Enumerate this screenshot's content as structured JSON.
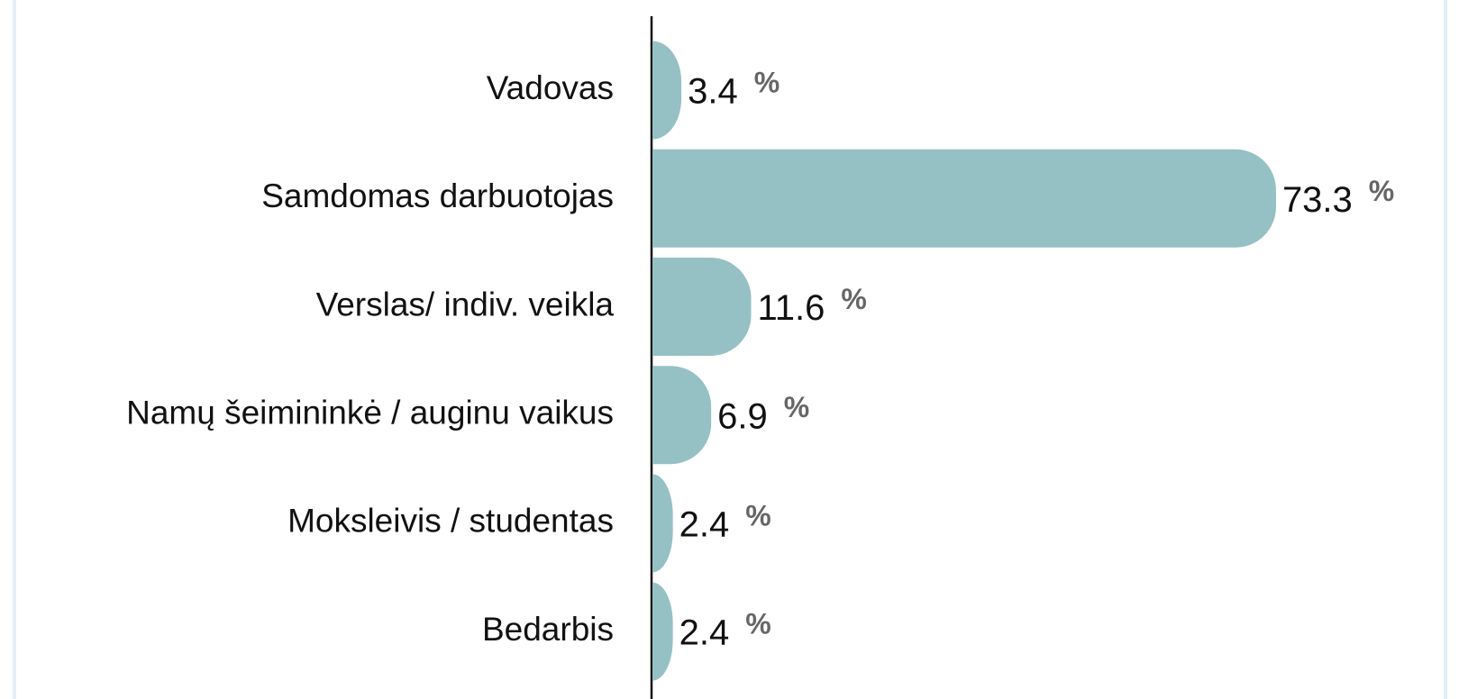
{
  "chart_data": {
    "type": "bar",
    "orientation": "horizontal",
    "categories": [
      "Vadovas",
      "Samdomas darbuotojas",
      "Verslas/ indiv. veikla",
      "Namų šeimininkė / auginu vaikus",
      "Moksleivis / studentas",
      "Bedarbis"
    ],
    "values": [
      3.4,
      73.3,
      11.6,
      6.9,
      2.4,
      2.4
    ],
    "unit": "%",
    "color": "#95c1c4"
  }
}
